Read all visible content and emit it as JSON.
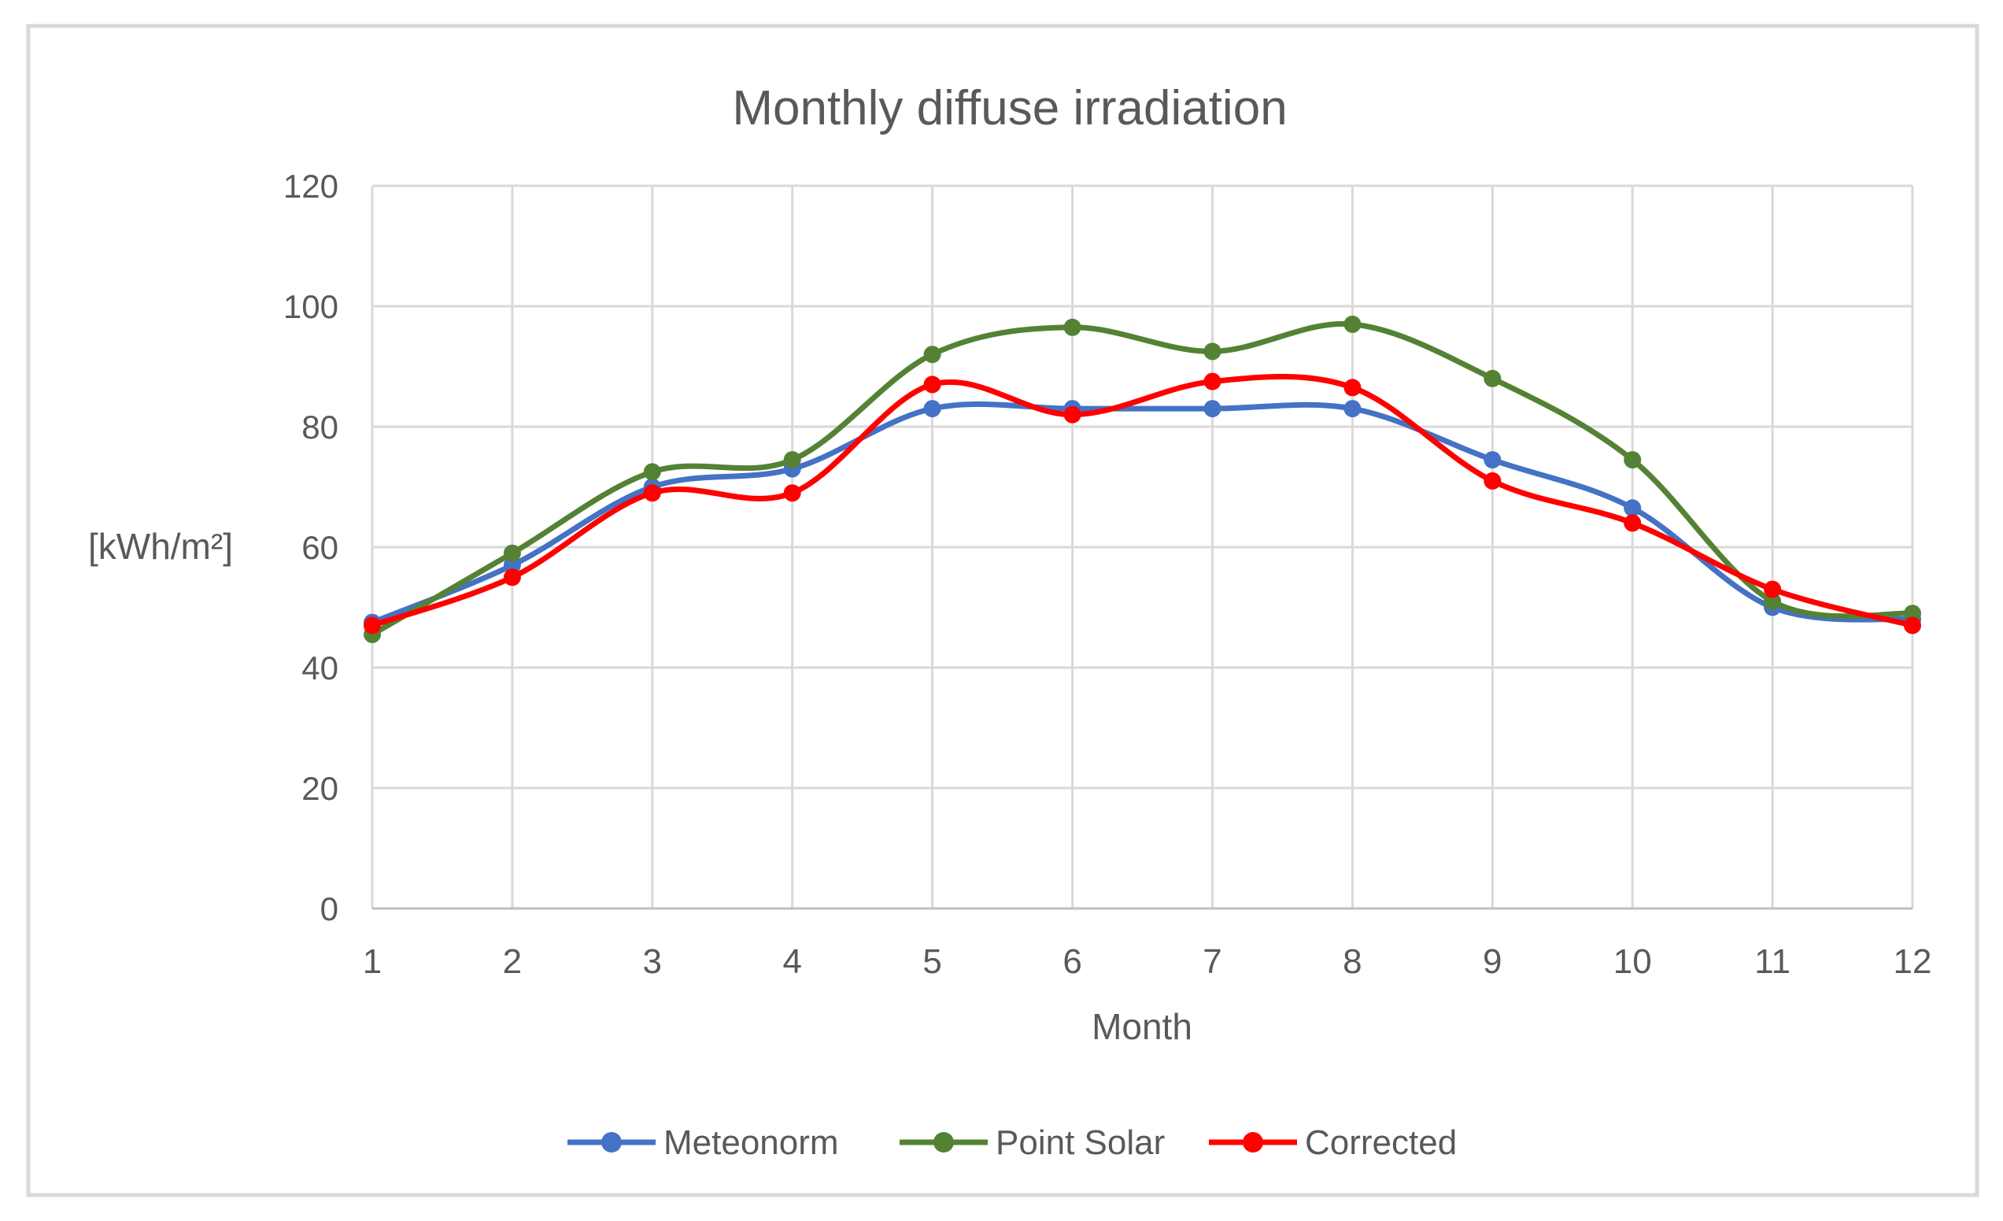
{
  "title": "Monthly diffuse irradiation",
  "colors": {
    "meteonorm": "#4472C4",
    "point_solar": "#548235",
    "corrected": "#FF0000",
    "gridline": "#D9D9D9",
    "axis_line": "#BFBFBF",
    "text": "#595959",
    "border": "#D9D9D9",
    "background": "#FFFFFF"
  },
  "legend": {
    "position": "bottom",
    "items": [
      "Meteonorm",
      "Point Solar",
      "Corrected"
    ]
  },
  "chart_data": {
    "type": "line",
    "title": "Monthly diffuse irradiation",
    "xlabel": "Month",
    "ylabel": "[kWh/m²]",
    "x": [
      1,
      2,
      3,
      4,
      5,
      6,
      7,
      8,
      9,
      10,
      11,
      12
    ],
    "y_ticks": [
      0,
      20,
      40,
      60,
      80,
      100,
      120
    ],
    "ylim": [
      0,
      120
    ],
    "grid": true,
    "smooth": true,
    "marker": "circle",
    "legend_position": "bottom",
    "series": [
      {
        "name": "Meteonorm",
        "color": "#4472C4",
        "values": [
          47.5,
          57,
          70,
          73,
          83,
          83,
          83,
          83,
          74.5,
          66.5,
          50,
          48
        ]
      },
      {
        "name": "Point Solar",
        "color": "#548235",
        "values": [
          45.5,
          59,
          72.5,
          74.5,
          92,
          96.5,
          92.5,
          97,
          88,
          74.5,
          51,
          49
        ]
      },
      {
        "name": "Corrected",
        "color": "#FF0000",
        "values": [
          47,
          55,
          69,
          69,
          87,
          82,
          87.5,
          86.5,
          71,
          64,
          53,
          47
        ]
      }
    ]
  }
}
